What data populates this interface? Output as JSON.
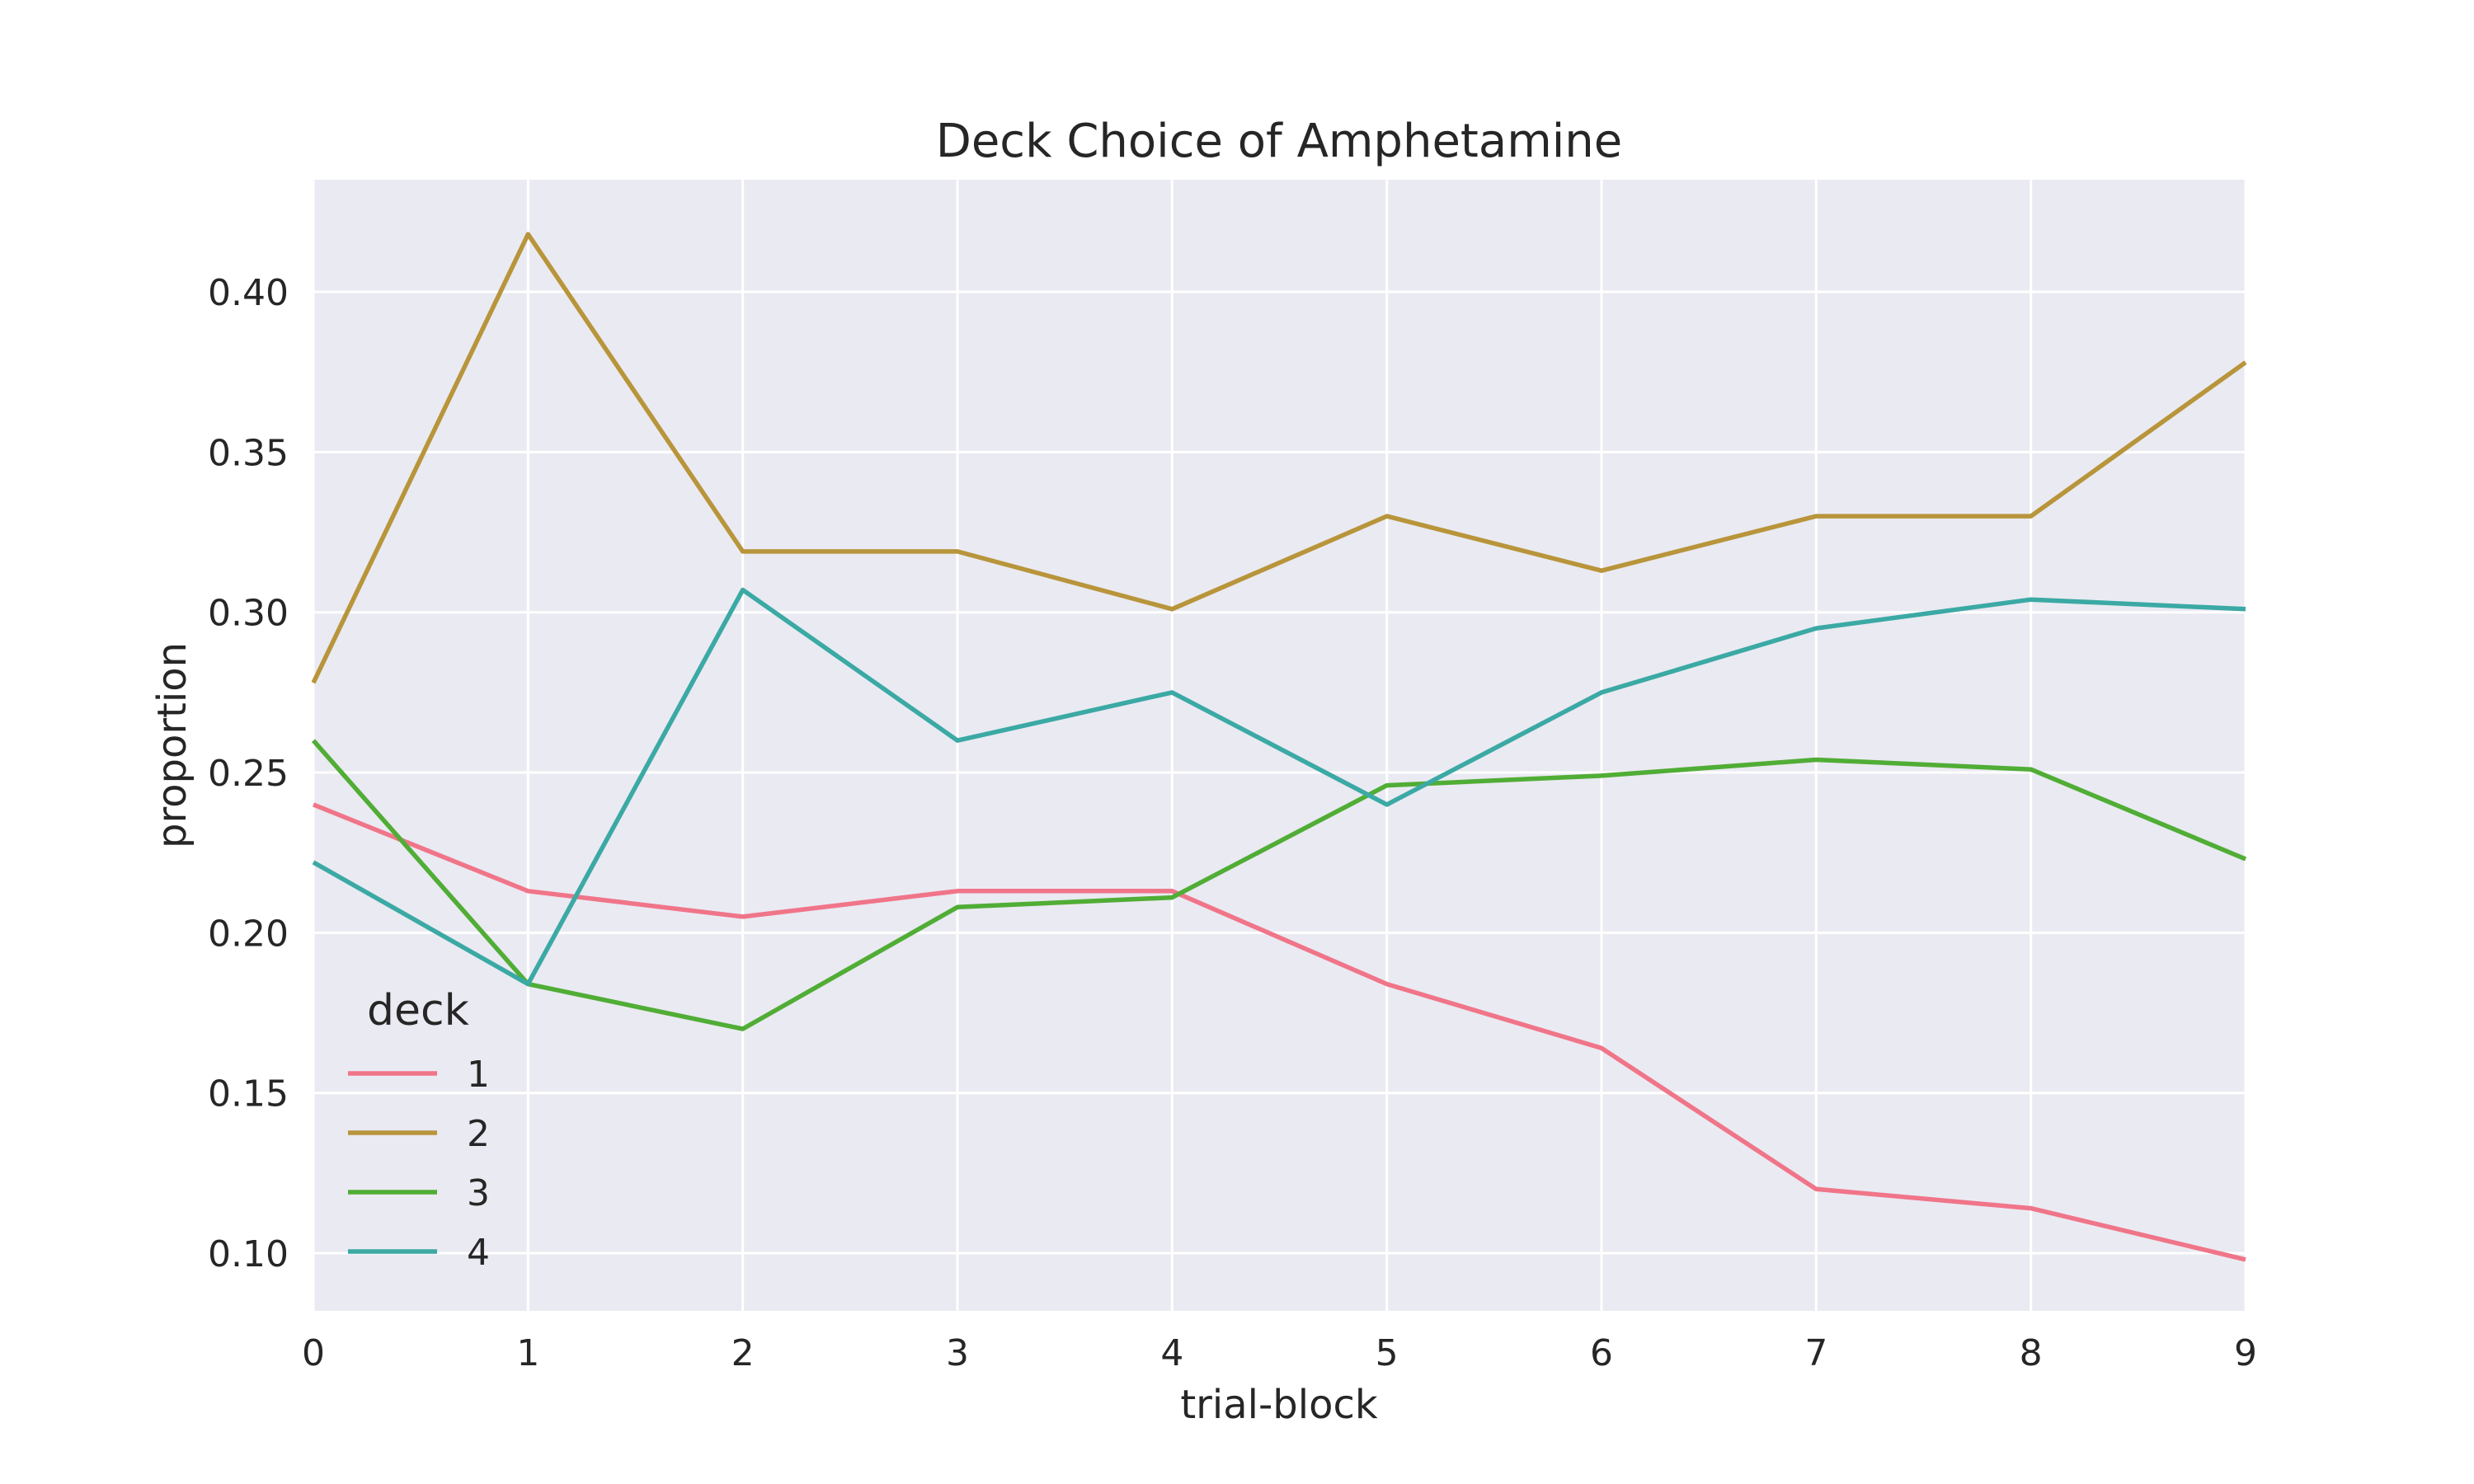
{
  "chart_data": {
    "type": "line",
    "title": "Deck Choice of Amphetamine",
    "xlabel": "trial-block",
    "ylabel": "proportion",
    "x": [
      0,
      1,
      2,
      3,
      4,
      5,
      6,
      7,
      8,
      9
    ],
    "xlim": [
      0,
      9
    ],
    "ylim": [
      0.082,
      0.435
    ],
    "x_ticks": [
      "0",
      "1",
      "2",
      "3",
      "4",
      "5",
      "6",
      "7",
      "8",
      "9"
    ],
    "y_ticks": [
      "0.10",
      "0.15",
      "0.20",
      "0.25",
      "0.30",
      "0.35",
      "0.40"
    ],
    "y_tick_values": [
      0.1,
      0.15,
      0.2,
      0.25,
      0.3,
      0.35,
      0.4
    ],
    "grid": true,
    "legend": {
      "title": "deck",
      "placement": "lower-left"
    },
    "series": [
      {
        "name": "1",
        "color": "#f07589",
        "values": [
          0.24,
          0.213,
          0.205,
          0.213,
          0.213,
          0.184,
          0.164,
          0.12,
          0.114,
          0.098
        ]
      },
      {
        "name": "2",
        "color": "#b8953b",
        "values": [
          0.278,
          0.418,
          0.319,
          0.319,
          0.301,
          0.33,
          0.313,
          0.33,
          0.33,
          0.378
        ]
      },
      {
        "name": "3",
        "color": "#50ad35",
        "values": [
          0.26,
          0.184,
          0.17,
          0.208,
          0.211,
          0.246,
          0.249,
          0.254,
          0.251,
          0.223
        ]
      },
      {
        "name": "4",
        "color": "#3ba9a4",
        "values": [
          0.222,
          0.184,
          0.307,
          0.26,
          0.275,
          0.24,
          0.275,
          0.295,
          0.304,
          0.301
        ]
      }
    ],
    "colors": {
      "plot_background": "#eaeaf2",
      "grid": "#ffffff",
      "text": "#262626"
    }
  }
}
